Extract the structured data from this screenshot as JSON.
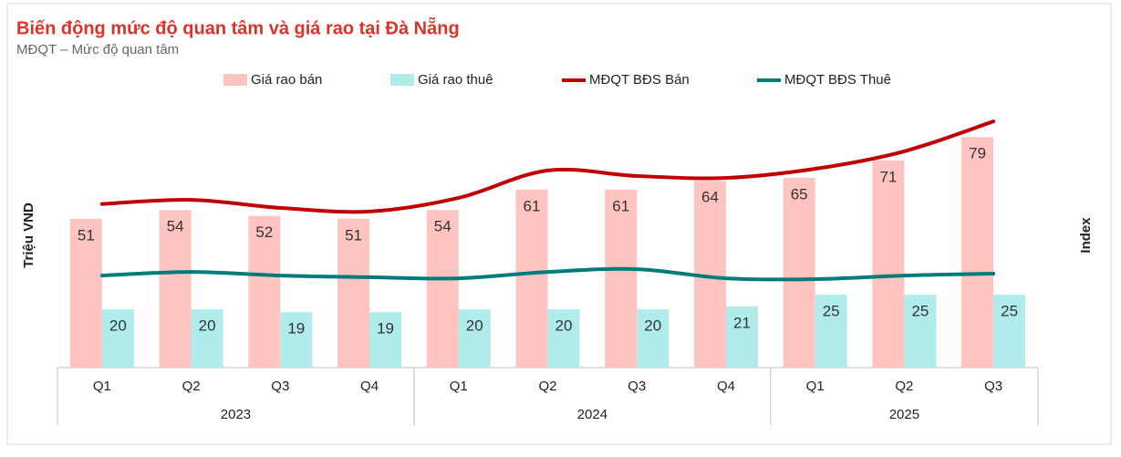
{
  "chart_data": {
    "type": "bar-line",
    "title": "Biến động mức độ quan tâm và giá rao tại Đà Nẵng",
    "subtitle": "MĐQT – Mức độ quan tâm",
    "y_label": "Triệu VND",
    "y2_label": "Index",
    "groups": [
      {
        "label": "2023",
        "categories": [
          "Q1",
          "Q2",
          "Q3",
          "Q4"
        ]
      },
      {
        "label": "2024",
        "categories": [
          "Q1",
          "Q2",
          "Q3",
          "Q4"
        ]
      },
      {
        "label": "2025",
        "categories": [
          "Q1",
          "Q2",
          "Q3"
        ]
      }
    ],
    "ylim": [
      0,
      95
    ],
    "y2lim": [
      0,
      100
    ],
    "series": [
      {
        "name": "Giá rao bán",
        "kind": "bar",
        "color": "#ffc4c0",
        "values": [
          51,
          54,
          52,
          51,
          54,
          61,
          61,
          64,
          65,
          71,
          79
        ]
      },
      {
        "name": "Giá rao thuê",
        "kind": "bar",
        "color": "#b0ecec",
        "values": [
          20,
          20,
          19,
          19,
          20,
          20,
          20,
          21,
          25,
          25,
          25
        ]
      },
      {
        "name": "MĐQT BĐS Bán",
        "kind": "line",
        "axis": "y2",
        "color": "#c00000",
        "values": [
          59,
          60.5,
          57.6,
          56.3,
          61.2,
          71.1,
          69.1,
          68.4,
          71.7,
          78,
          88.8
        ]
      },
      {
        "name": "MĐQT BĐS Thuê",
        "kind": "line",
        "axis": "y2",
        "color": "#007b7b",
        "values": [
          33.2,
          34.5,
          33.2,
          32.6,
          32.2,
          34.5,
          35.5,
          32.2,
          31.9,
          33.2,
          33.9
        ]
      }
    ]
  }
}
